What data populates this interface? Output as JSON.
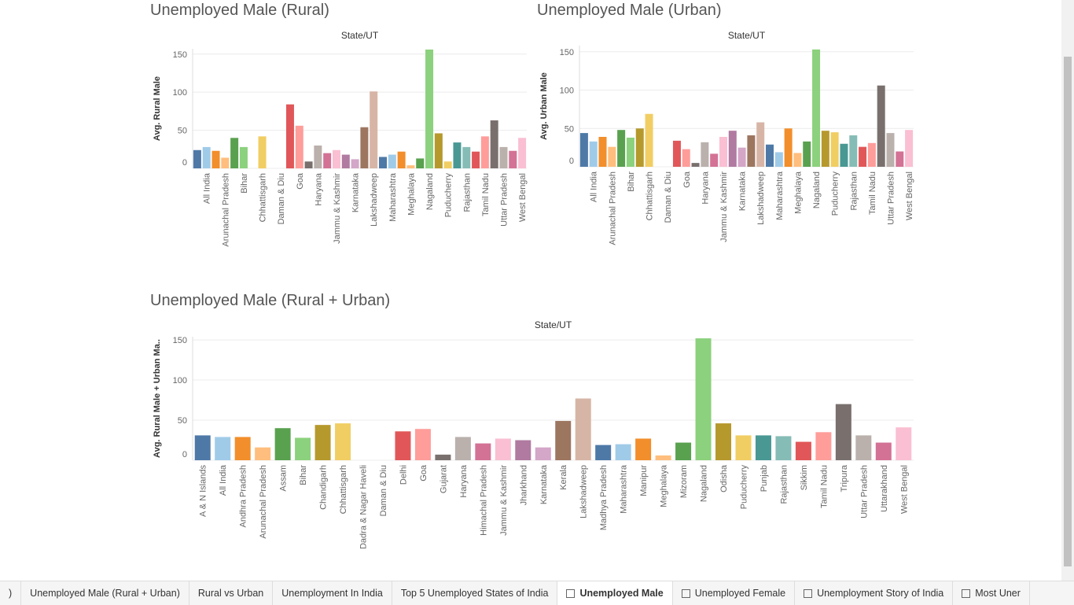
{
  "chart_data": [
    {
      "type": "bar",
      "title": "Unemployed Male (Rural)",
      "x_label": "State/UT",
      "y_label": "Avg. Rural Male",
      "categories": [
        null,
        "All India",
        null,
        "Arunachal Pradesh",
        null,
        "Bihar",
        null,
        "Chhattisgarh",
        null,
        "Daman & Diu",
        null,
        "Goa",
        null,
        "Haryana",
        null,
        "Jammu & Kashmir",
        null,
        "Karnataka",
        null,
        "Lakshadweep",
        null,
        "Maharashtra",
        null,
        "Meghalaya",
        null,
        "Nagaland",
        null,
        "Puducherry",
        null,
        "Rajasthan",
        null,
        "Tamil Nadu",
        null,
        "Uttar Pradesh",
        null,
        "West Bengal"
      ],
      "values": [
        24,
        28,
        23,
        14,
        40,
        28,
        0,
        42,
        0,
        0,
        84,
        56,
        9,
        30,
        20,
        24,
        18,
        12,
        54,
        101,
        15,
        18,
        22,
        4,
        13,
        156,
        46,
        9,
        34,
        28,
        22,
        42,
        63,
        28,
        23,
        40
      ],
      "ylim": [
        0,
        157
      ],
      "yticks": [
        0,
        50,
        100,
        150
      ],
      "grid": true,
      "palette": [
        "#4e79a7",
        "#a0cbe8",
        "#f28e2b",
        "#ffbe7d",
        "#59a14f",
        "#8cd17d",
        "#b6992d",
        "#f1ce63",
        "#499894",
        "#86bcb6",
        "#e15759",
        "#ff9d9a",
        "#79706e",
        "#bab0ac",
        "#d37295",
        "#fabfd2",
        "#b07aa1",
        "#d4a6c8",
        "#9d7660",
        "#d7b5a6"
      ]
    },
    {
      "type": "bar",
      "title": "Unemployed Male (Urban)",
      "x_label": "State/UT",
      "y_label": "Avg. Urban Male",
      "categories": [
        null,
        "All India",
        null,
        "Arunachal Pradesh",
        null,
        "Bihar",
        null,
        "Chhattisgarh",
        null,
        "Daman & Diu",
        null,
        "Goa",
        null,
        "Haryana",
        null,
        "Jammu & Kashmir",
        null,
        "Karnataka",
        null,
        "Lakshadweep",
        null,
        "Maharashtra",
        null,
        "Meghalaya",
        null,
        "Nagaland",
        null,
        "Puducherry",
        null,
        "Rajasthan",
        null,
        "Tamil Nadu",
        null,
        "Uttar Pradesh",
        null,
        "West Bengal"
      ],
      "values": [
        44,
        33,
        39,
        26,
        48,
        38,
        50,
        69,
        0,
        0,
        34,
        23,
        5,
        32,
        17,
        39,
        47,
        25,
        41,
        58,
        29,
        19,
        50,
        18,
        33,
        153,
        47,
        45,
        30,
        41,
        26,
        31,
        106,
        44,
        20,
        48
      ],
      "ylim": [
        0,
        158
      ],
      "yticks": [
        0,
        50,
        100,
        150
      ],
      "grid": true,
      "palette": [
        "#4e79a7",
        "#a0cbe8",
        "#f28e2b",
        "#ffbe7d",
        "#59a14f",
        "#8cd17d",
        "#b6992d",
        "#f1ce63",
        "#499894",
        "#86bcb6",
        "#e15759",
        "#ff9d9a",
        "#79706e",
        "#bab0ac",
        "#d37295",
        "#fabfd2",
        "#b07aa1",
        "#d4a6c8",
        "#9d7660",
        "#d7b5a6"
      ]
    },
    {
      "type": "bar",
      "title": "Unemployed Male (Rural + Urban)",
      "x_label": "State/UT",
      "y_label": "Avg. Rural Male + Urban Ma..",
      "categories": [
        "A & N Islands",
        "All India",
        "Andhra Pradesh",
        "Arunachal Pradesh",
        "Assam",
        "Bihar",
        "Chandigarh",
        "Chhattisgarh",
        "Dadra & Nagar Haveli",
        "Daman & Diu",
        "Delhi",
        "Goa",
        "Gujarat",
        "Haryana",
        "Himachal Pradesh",
        "Jammu & Kashmir",
        "Jharkhand",
        "Karnataka",
        "Kerala",
        "Lakshadweep",
        "Madhya Pradesh",
        "Maharashtra",
        "Manipur",
        "Meghalaya",
        "Mizoram",
        "Nagaland",
        "Odisha",
        "Puducherry",
        "Punjab",
        "Rajasthan",
        "Sikkim",
        "Tamil Nadu",
        "Tripura",
        "Uttar Pradesh",
        "Uttarakhand",
        "West Bengal"
      ],
      "values": [
        31,
        29,
        29,
        16,
        40,
        28,
        44,
        46,
        0,
        0,
        36,
        39,
        7,
        29,
        21,
        27,
        25,
        16,
        49,
        77,
        19,
        20,
        27,
        6,
        22,
        152,
        46,
        31,
        31,
        30,
        23,
        35,
        70,
        31,
        22,
        41
      ],
      "ylim": [
        0,
        154
      ],
      "yticks": [
        0,
        50,
        100,
        150
      ],
      "grid": true,
      "palette": [
        "#4e79a7",
        "#a0cbe8",
        "#f28e2b",
        "#ffbe7d",
        "#59a14f",
        "#8cd17d",
        "#b6992d",
        "#f1ce63",
        "#499894",
        "#86bcb6",
        "#e15759",
        "#ff9d9a",
        "#79706e",
        "#bab0ac",
        "#d37295",
        "#fabfd2",
        "#b07aa1",
        "#d4a6c8",
        "#9d7660",
        "#d7b5a6"
      ]
    }
  ],
  "tabs": [
    ")",
    "Unemployed Male (Rural + Urban)",
    "Rural vs Urban",
    "Unemployment In India",
    "Top 5 Unemployed States of India",
    "Unemployed Male",
    "Unemployed Female",
    "Unemployment Story of India",
    "Most Uner"
  ],
  "active_tab": 5
}
